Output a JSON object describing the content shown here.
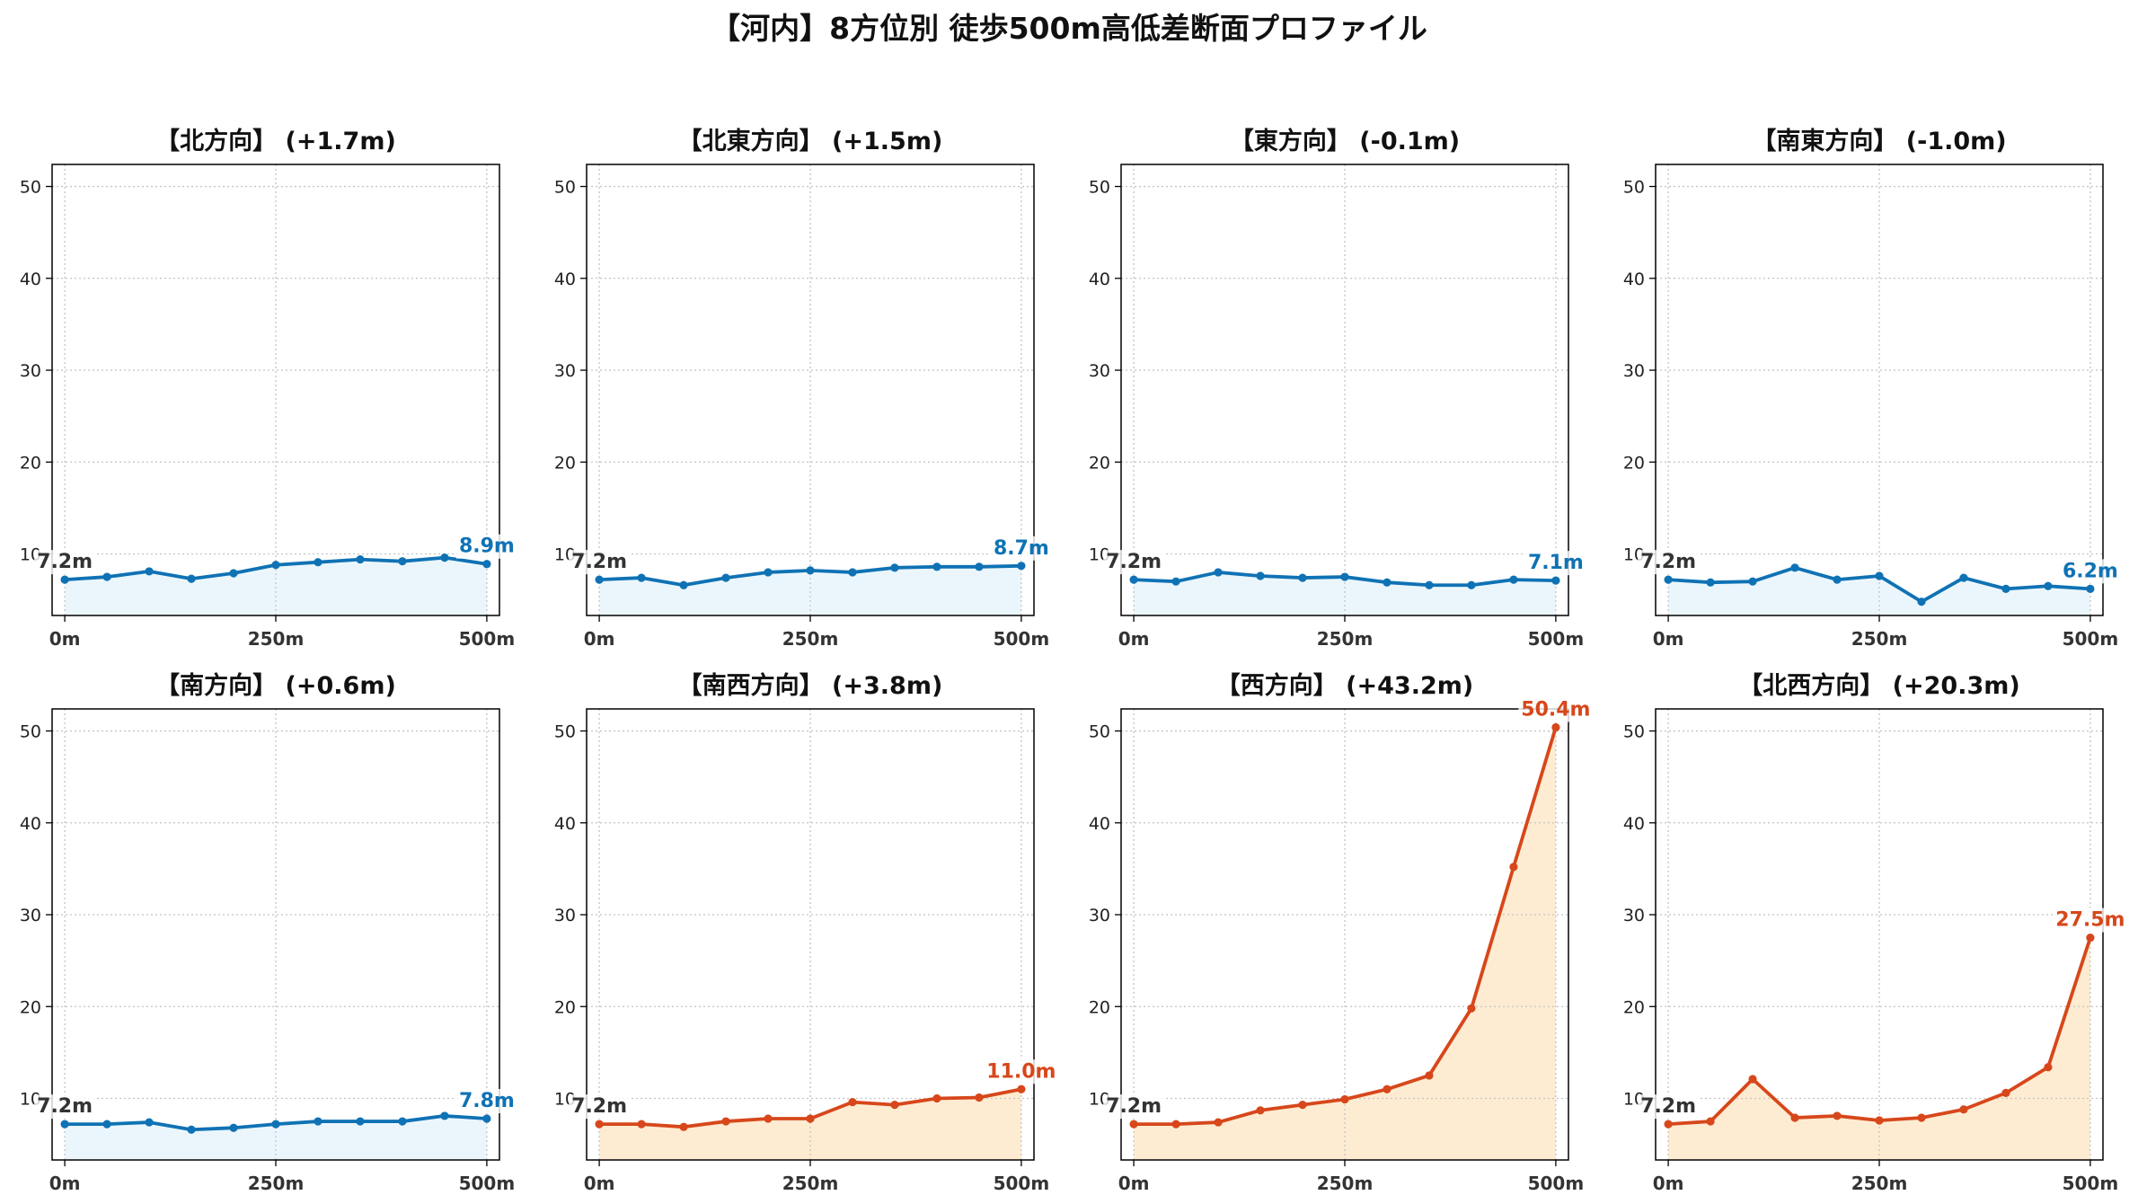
{
  "title": "【河内】8方位別 徒歩500m高低差断面プロファイル",
  "colors": {
    "start_label": "#333333",
    "grid": "#c4c4c4",
    "frame": "#000000"
  },
  "chart_data": [
    {
      "type": "line",
      "title": "【北方向】 (+1.7m)",
      "x": [
        0,
        50,
        100,
        150,
        200,
        250,
        300,
        350,
        400,
        450,
        500
      ],
      "xticks": [
        0,
        250,
        500
      ],
      "xticklabels": [
        "0m",
        "250m",
        "500m"
      ],
      "yticks": [
        10,
        20,
        30,
        40,
        50
      ],
      "yticklabels": [
        "10",
        "20",
        "30",
        "40",
        "50"
      ],
      "xlim": [
        -15,
        515
      ],
      "ylim": [
        3.3,
        52.4
      ],
      "grid": true,
      "series": [
        {
          "values": [
            7.2,
            7.5,
            8.1,
            7.3,
            7.9,
            8.8,
            9.1,
            9.4,
            9.2,
            9.6,
            8.9
          ],
          "color": "#0f72b4",
          "fill_color": "#ebf6fc"
        }
      ],
      "start_label": "7.2m",
      "end_label": "8.9m"
    },
    {
      "type": "line",
      "title": "【北東方向】 (+1.5m)",
      "x": [
        0,
        50,
        100,
        150,
        200,
        250,
        300,
        350,
        400,
        450,
        500
      ],
      "xticks": [
        0,
        250,
        500
      ],
      "xticklabels": [
        "0m",
        "250m",
        "500m"
      ],
      "yticks": [
        10,
        20,
        30,
        40,
        50
      ],
      "yticklabels": [
        "10",
        "20",
        "30",
        "40",
        "50"
      ],
      "xlim": [
        -15,
        515
      ],
      "ylim": [
        3.3,
        52.4
      ],
      "grid": true,
      "series": [
        {
          "values": [
            7.2,
            7.4,
            6.6,
            7.4,
            8.0,
            8.2,
            8.0,
            8.5,
            8.6,
            8.6,
            8.7
          ],
          "color": "#0f72b4",
          "fill_color": "#ebf6fc"
        }
      ],
      "start_label": "7.2m",
      "end_label": "8.7m"
    },
    {
      "type": "line",
      "title": "【東方向】 (-0.1m)",
      "x": [
        0,
        50,
        100,
        150,
        200,
        250,
        300,
        350,
        400,
        450,
        500
      ],
      "xticks": [
        0,
        250,
        500
      ],
      "xticklabels": [
        "0m",
        "250m",
        "500m"
      ],
      "yticks": [
        10,
        20,
        30,
        40,
        50
      ],
      "yticklabels": [
        "10",
        "20",
        "30",
        "40",
        "50"
      ],
      "xlim": [
        -15,
        515
      ],
      "ylim": [
        3.3,
        52.4
      ],
      "grid": true,
      "series": [
        {
          "values": [
            7.2,
            7.0,
            8.0,
            7.6,
            7.4,
            7.5,
            6.9,
            6.6,
            6.6,
            7.2,
            7.1
          ],
          "color": "#0f72b4",
          "fill_color": "#ebf6fc"
        }
      ],
      "start_label": "7.2m",
      "end_label": "7.1m"
    },
    {
      "type": "line",
      "title": "【南東方向】 (-1.0m)",
      "x": [
        0,
        50,
        100,
        150,
        200,
        250,
        300,
        350,
        400,
        450,
        500
      ],
      "xticks": [
        0,
        250,
        500
      ],
      "xticklabels": [
        "0m",
        "250m",
        "500m"
      ],
      "yticks": [
        10,
        20,
        30,
        40,
        50
      ],
      "yticklabels": [
        "10",
        "20",
        "30",
        "40",
        "50"
      ],
      "xlim": [
        -15,
        515
      ],
      "ylim": [
        3.3,
        52.4
      ],
      "grid": true,
      "series": [
        {
          "values": [
            7.2,
            6.9,
            7.0,
            8.5,
            7.2,
            7.6,
            4.8,
            7.4,
            6.2,
            6.5,
            6.2
          ],
          "color": "#0f72b4",
          "fill_color": "#ebf6fc"
        }
      ],
      "start_label": "7.2m",
      "end_label": "6.2m"
    },
    {
      "type": "line",
      "title": "【南方向】 (+0.6m)",
      "x": [
        0,
        50,
        100,
        150,
        200,
        250,
        300,
        350,
        400,
        450,
        500
      ],
      "xticks": [
        0,
        250,
        500
      ],
      "xticklabels": [
        "0m",
        "250m",
        "500m"
      ],
      "yticks": [
        10,
        20,
        30,
        40,
        50
      ],
      "yticklabels": [
        "10",
        "20",
        "30",
        "40",
        "50"
      ],
      "xlim": [
        -15,
        515
      ],
      "ylim": [
        3.3,
        52.4
      ],
      "grid": true,
      "series": [
        {
          "values": [
            7.2,
            7.2,
            7.4,
            6.6,
            6.8,
            7.2,
            7.5,
            7.5,
            7.5,
            8.1,
            7.8
          ],
          "color": "#0f72b4",
          "fill_color": "#ebf6fc"
        }
      ],
      "start_label": "7.2m",
      "end_label": "7.8m"
    },
    {
      "type": "line",
      "title": "【南西方向】 (+3.8m)",
      "x": [
        0,
        50,
        100,
        150,
        200,
        250,
        300,
        350,
        400,
        450,
        500
      ],
      "xticks": [
        0,
        250,
        500
      ],
      "xticklabels": [
        "0m",
        "250m",
        "500m"
      ],
      "yticks": [
        10,
        20,
        30,
        40,
        50
      ],
      "yticklabels": [
        "10",
        "20",
        "30",
        "40",
        "50"
      ],
      "xlim": [
        -15,
        515
      ],
      "ylim": [
        3.3,
        52.4
      ],
      "grid": true,
      "series": [
        {
          "values": [
            7.2,
            7.2,
            6.9,
            7.5,
            7.8,
            7.8,
            9.6,
            9.3,
            10.0,
            10.1,
            11.0
          ],
          "color": "#d7471b",
          "fill_color": "#fdecd2"
        }
      ],
      "start_label": "7.2m",
      "end_label": "11.0m"
    },
    {
      "type": "line",
      "title": "【西方向】 (+43.2m)",
      "x": [
        0,
        50,
        100,
        150,
        200,
        250,
        300,
        350,
        400,
        450,
        500
      ],
      "xticks": [
        0,
        250,
        500
      ],
      "xticklabels": [
        "0m",
        "250m",
        "500m"
      ],
      "yticks": [
        10,
        20,
        30,
        40,
        50
      ],
      "yticklabels": [
        "10",
        "20",
        "30",
        "40",
        "50"
      ],
      "xlim": [
        -15,
        515
      ],
      "ylim": [
        3.3,
        52.4
      ],
      "grid": true,
      "series": [
        {
          "values": [
            7.2,
            7.2,
            7.4,
            8.7,
            9.3,
            9.9,
            11.0,
            12.5,
            19.8,
            35.2,
            50.4
          ],
          "color": "#d7471b",
          "fill_color": "#fdecd2"
        }
      ],
      "start_label": "7.2m",
      "end_label": "50.4m"
    },
    {
      "type": "line",
      "title": "【北西方向】 (+20.3m)",
      "x": [
        0,
        50,
        100,
        150,
        200,
        250,
        300,
        350,
        400,
        450,
        500
      ],
      "xticks": [
        0,
        250,
        500
      ],
      "xticklabels": [
        "0m",
        "250m",
        "500m"
      ],
      "yticks": [
        10,
        20,
        30,
        40,
        50
      ],
      "yticklabels": [
        "10",
        "20",
        "30",
        "40",
        "50"
      ],
      "xlim": [
        -15,
        515
      ],
      "ylim": [
        3.3,
        52.4
      ],
      "grid": true,
      "series": [
        {
          "values": [
            7.2,
            7.5,
            12.1,
            7.9,
            8.1,
            7.6,
            7.9,
            8.8,
            10.6,
            13.4,
            27.5
          ],
          "color": "#d7471b",
          "fill_color": "#fdecd2"
        }
      ],
      "start_label": "7.2m",
      "end_label": "27.5m"
    }
  ]
}
